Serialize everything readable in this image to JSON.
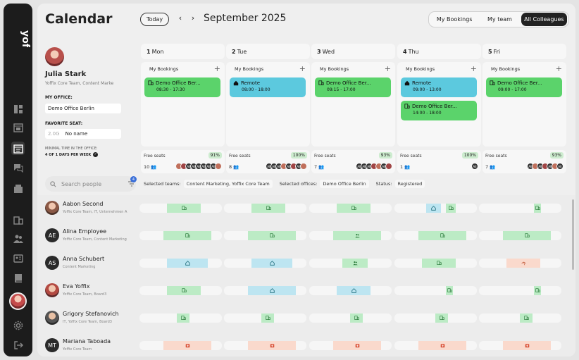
{
  "app": {
    "logo": "yoffix",
    "title": "Calendar"
  },
  "sidebar": {
    "items": [
      "dashboard",
      "calendar-view",
      "calendar",
      "chat",
      "inbox",
      "building",
      "team",
      "id-card",
      "book",
      "user",
      "settings",
      "logout"
    ]
  },
  "header": {
    "today": "Today",
    "prev": "‹",
    "next": "›",
    "month": "September 2025",
    "views": [
      "My Bookings",
      "My team",
      "All Colleagues"
    ],
    "active_view": "All Colleagues"
  },
  "profile": {
    "name": "Julia Stark",
    "subtitle": "Yoffix Core Team, Content Marke",
    "office_label": "MY OFFICE:",
    "office": "Demo Office Berlin",
    "seat_label": "FAVORITE SEAT:",
    "seat_code": "2.0G",
    "seat": "No name",
    "min_label": "MINIMAL TIME IN THE OFFICE:",
    "min_value": "4 OF 1 DAYS PER WEEK",
    "check": "✓"
  },
  "my_bookings_label": "My Bookings",
  "plus": "+",
  "free_seats_label": "Free seats",
  "days": [
    {
      "num": "1",
      "name": "Mon",
      "bookings": [
        {
          "title": "Demo Office Ber...",
          "time": "08:30 - 17:30",
          "type": "office"
        }
      ],
      "free_pct": "91%",
      "count": "10",
      "avs": [
        "p",
        "r",
        "d",
        "d",
        "d",
        "d",
        "d",
        "d",
        "p"
      ]
    },
    {
      "num": "2",
      "name": "Tue",
      "bookings": [
        {
          "title": "Remote",
          "time": "08:00 - 18:00",
          "type": "remote"
        }
      ],
      "free_pct": "100%",
      "count": "8",
      "avs": [
        "d",
        "d",
        "d",
        "p",
        "d",
        "r",
        "d",
        "p"
      ]
    },
    {
      "num": "3",
      "name": "Wed",
      "bookings": [
        {
          "title": "Demo Office Ber...",
          "time": "09:15 - 17:00",
          "type": "office"
        }
      ],
      "free_pct": "93%",
      "count": "7",
      "avs": [
        "d",
        "d",
        "d",
        "r",
        "p",
        "d",
        "r"
      ]
    },
    {
      "num": "4",
      "name": "Thu",
      "bookings": [
        {
          "title": "Remote",
          "time": "09:00 - 13:00",
          "type": "remote"
        },
        {
          "title": "Demo Office Ber...",
          "time": "14:00 - 18:00",
          "type": "office"
        }
      ],
      "free_pct": "100%",
      "count": "1",
      "avs": [
        "d"
      ]
    },
    {
      "num": "5",
      "name": "Fri",
      "bookings": [
        {
          "title": "Demo Office Ber...",
          "time": "09:00 - 17:00",
          "type": "office"
        }
      ],
      "free_pct": "93%",
      "count": "7",
      "avs": [
        "d",
        "p",
        "d",
        "r",
        "d",
        "p",
        "d"
      ]
    }
  ],
  "seat_initials": {
    "d": "AE"
  },
  "search": {
    "placeholder": "Search people",
    "badge": "4"
  },
  "filters": {
    "teams_label": "Selected teams:",
    "teams": "Content Marketing, Yoffix Core Team",
    "offices_label": "Selected offices:",
    "offices": "Demo Office Berlin",
    "status_label": "Status:",
    "status": "Registered"
  },
  "people": [
    {
      "name": "Aabon Second",
      "sub": "Yoffix Core Team, IT, Unternehmen A",
      "avatar": "ph1",
      "initials": "",
      "days": [
        [
          "office"
        ],
        [
          "office"
        ],
        [
          "office"
        ],
        [
          "remote",
          "office"
        ],
        [
          "office"
        ]
      ]
    },
    {
      "name": "Alina Employee",
      "sub": "Yoffix Core Team, Content Marketing",
      "avatar": "ini",
      "initials": "AE",
      "days": [
        [
          "office"
        ],
        [
          "office"
        ],
        [
          "team"
        ],
        [
          "office"
        ],
        [
          "office"
        ]
      ]
    },
    {
      "name": "Anna Schubert",
      "sub": "Content Marketing",
      "avatar": "ini",
      "initials": "AS",
      "days": [
        [
          "remote"
        ],
        [
          "remote"
        ],
        [
          "team"
        ],
        [
          "office"
        ],
        [
          "vacation"
        ]
      ]
    },
    {
      "name": "Eva Yoffix",
      "sub": "Yoffix Core Team, Board3",
      "avatar": "ph2",
      "initials": "",
      "days": [
        [
          "office"
        ],
        [
          "remote"
        ],
        [
          "remote"
        ],
        [
          "office"
        ],
        [
          "office"
        ]
      ]
    },
    {
      "name": "Grigory Stefanovich",
      "sub": "IT, Yoffix Core Team, Board3",
      "avatar": "ph3",
      "initials": "",
      "days": [
        [
          "office"
        ],
        [
          "office"
        ],
        [
          "office"
        ],
        [
          "office"
        ],
        [
          "office"
        ]
      ]
    },
    {
      "name": "Mariana Taboada",
      "sub": "Yoffix Core Team",
      "avatar": "ini",
      "initials": "MT",
      "days": [
        [
          "sick"
        ],
        [
          "sick"
        ],
        [
          "sick"
        ],
        [
          "sick"
        ],
        [
          "sick"
        ]
      ]
    }
  ]
}
